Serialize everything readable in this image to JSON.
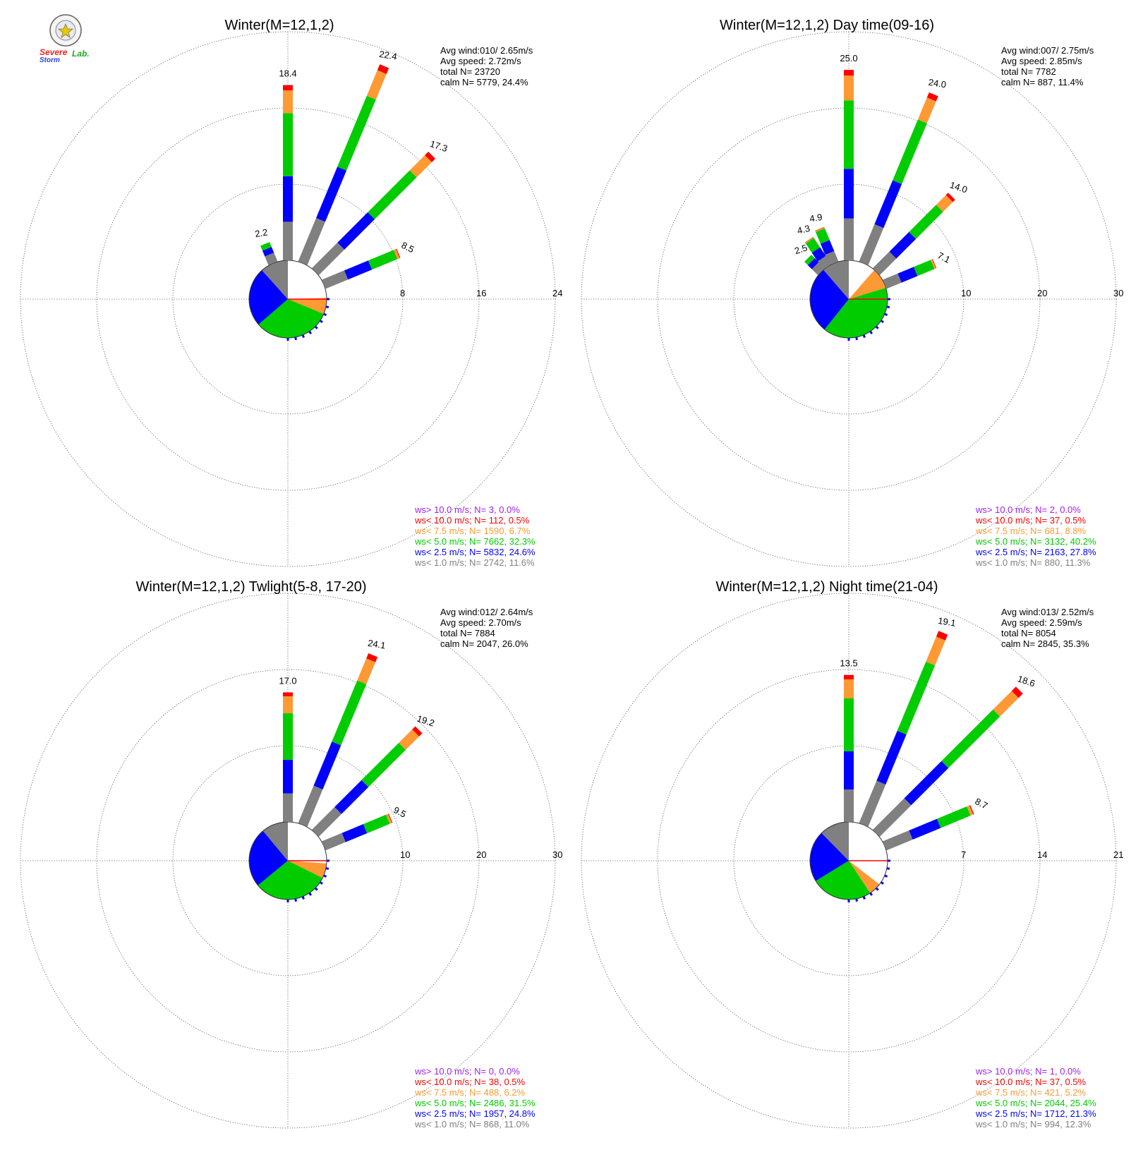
{
  "logo": {
    "seal": "seal-icon",
    "text_severe": "Severe",
    "text_storm": "Storm",
    "text_lab": "Lab."
  },
  "legend_colors": {
    "ws_gt_10": "#a020f0",
    "ws_lt_10": "#ff0000",
    "ws_lt_7_5": "#ff9933",
    "ws_lt_5": "#00cc00",
    "ws_lt_2_5": "#0000ff",
    "ws_lt_1": "#808080"
  },
  "chart_data": [
    {
      "type": "wind-rose",
      "title": "Winter(M=12,1,2)",
      "rings": [
        8,
        16,
        24
      ],
      "info": {
        "avg_wind": "Avg wind:010/ 2.65m/s",
        "avg_speed": "Avg speed: 2.72m/s",
        "total": "total N=      23720",
        "calm": "calm N=   5779,  24.4%"
      },
      "legend": [
        {
          "text": "ws> 10.0 m/s; N=      3,  0.0%",
          "color": "#a020f0"
        },
        {
          "text": "ws< 10.0 m/s; N=   112,  0.5%",
          "color": "#ff0000"
        },
        {
          "text": "ws<  7.5 m/s; N=  1590,  6.7%",
          "color": "#ff9933"
        },
        {
          "text": "ws<  5.0 m/s; N=  7662, 32.3%",
          "color": "#00cc00"
        },
        {
          "text": "ws<  2.5 m/s; N=  5832, 24.6%",
          "color": "#0000ff"
        },
        {
          "text": "ws<  1.0 m/s; N=  2742, 11.6%",
          "color": "#808080"
        }
      ],
      "bars": [
        {
          "dir": 337.5,
          "total": 2.2,
          "label": "2.2"
        },
        {
          "dir": 0,
          "total": 18.4,
          "label": "18.4"
        },
        {
          "dir": 22.5,
          "total": 22.4,
          "label": "22.4"
        },
        {
          "dir": 45,
          "total": 17.3,
          "label": "17.3"
        },
        {
          "dir": 67.5,
          "total": 8.5,
          "label": "8.5"
        }
      ],
      "pie": [
        24.4,
        6.7,
        32.3,
        24.6,
        11.6
      ]
    },
    {
      "type": "wind-rose",
      "title": "Winter(M=12,1,2) Day time(09-16)",
      "rings": [
        10,
        20,
        30
      ],
      "info": {
        "avg_wind": "Avg wind:007/ 2.75m/s",
        "avg_speed": "Avg speed: 2.85m/s",
        "total": "total N=       7782",
        "calm": "calm N=    887,  11.4%"
      },
      "legend": [
        {
          "text": "ws> 10.0 m/s; N=      2,  0.0%",
          "color": "#a020f0"
        },
        {
          "text": "ws< 10.0 m/s; N=     37,  0.5%",
          "color": "#ff0000"
        },
        {
          "text": "ws<  7.5 m/s; N=    681,  8.8%",
          "color": "#ff9933"
        },
        {
          "text": "ws<  5.0 m/s; N=  3132, 40.2%",
          "color": "#00cc00"
        },
        {
          "text": "ws<  2.5 m/s; N=  2163, 27.8%",
          "color": "#0000ff"
        },
        {
          "text": "ws<  1.0 m/s; N=    880, 11.3%",
          "color": "#808080"
        }
      ],
      "bars": [
        {
          "dir": 315,
          "total": 2.5,
          "label": "2.5"
        },
        {
          "dir": 326.25,
          "total": 4.3,
          "label": "4.3"
        },
        {
          "dir": 337.5,
          "total": 4.9,
          "label": "4.9"
        },
        {
          "dir": 0,
          "total": 25.0,
          "label": "25.0"
        },
        {
          "dir": 22.5,
          "total": 24.0,
          "label": "24.0"
        },
        {
          "dir": 45,
          "total": 14.0,
          "label": "14.0"
        },
        {
          "dir": 67.5,
          "total": 7.1,
          "label": "7.1"
        }
      ],
      "pie": [
        11.4,
        8.8,
        40.2,
        27.8,
        11.3
      ]
    },
    {
      "type": "wind-rose",
      "title": "Winter(M=12,1,2) Twlight(5-8, 17-20)",
      "rings": [
        10,
        20,
        30
      ],
      "info": {
        "avg_wind": "Avg wind:012/ 2.64m/s",
        "avg_speed": "Avg speed: 2.70m/s",
        "total": "total N=       7884",
        "calm": "calm N=   2047,  26.0%"
      },
      "legend": [
        {
          "text": "ws> 10.0 m/s; N=      0,  0.0%",
          "color": "#a020f0"
        },
        {
          "text": "ws< 10.0 m/s; N=     38,  0.5%",
          "color": "#ff0000"
        },
        {
          "text": "ws<  7.5 m/s; N=    488,  6.2%",
          "color": "#ff9933"
        },
        {
          "text": "ws<  5.0 m/s; N=  2486, 31.5%",
          "color": "#00cc00"
        },
        {
          "text": "ws<  2.5 m/s; N=  1957, 24.8%",
          "color": "#0000ff"
        },
        {
          "text": "ws<  1.0 m/s; N=    868, 11.0%",
          "color": "#808080"
        }
      ],
      "bars": [
        {
          "dir": 0,
          "total": 17.0,
          "label": "17.0"
        },
        {
          "dir": 22.5,
          "total": 24.1,
          "label": "24.1"
        },
        {
          "dir": 45,
          "total": 19.2,
          "label": "19.2"
        },
        {
          "dir": 67.5,
          "total": 9.5,
          "label": "9.5"
        }
      ],
      "pie": [
        26.0,
        6.2,
        31.5,
        24.8,
        11.0
      ]
    },
    {
      "type": "wind-rose",
      "title": "Winter(M=12,1,2) Night time(21-04)",
      "rings": [
        7,
        14,
        21
      ],
      "info": {
        "avg_wind": "Avg wind:013/ 2.52m/s",
        "avg_speed": "Avg speed: 2.59m/s",
        "total": "total N=       8054",
        "calm": "calm N=   2845,  35.3%"
      },
      "legend": [
        {
          "text": "ws> 10.0 m/s; N=      1,  0.0%",
          "color": "#a020f0"
        },
        {
          "text": "ws< 10.0 m/s; N=     37,  0.5%",
          "color": "#ff0000"
        },
        {
          "text": "ws<  7.5 m/s; N=    421,  5.2%",
          "color": "#ff9933"
        },
        {
          "text": "ws<  5.0 m/s; N=  2044, 25.4%",
          "color": "#00cc00"
        },
        {
          "text": "ws<  2.5 m/s; N=  1712, 21.3%",
          "color": "#0000ff"
        },
        {
          "text": "ws<  1.0 m/s; N=    994, 12.3%",
          "color": "#808080"
        }
      ],
      "bars": [
        {
          "dir": 0,
          "total": 13.5,
          "label": "13.5"
        },
        {
          "dir": 22.5,
          "total": 19.1,
          "label": "19.1"
        },
        {
          "dir": 45,
          "total": 18.6,
          "label": "18.6"
        },
        {
          "dir": 67.5,
          "total": 8.7,
          "label": "8.7"
        }
      ],
      "pie": [
        35.3,
        5.2,
        25.4,
        21.3,
        12.3
      ]
    }
  ]
}
